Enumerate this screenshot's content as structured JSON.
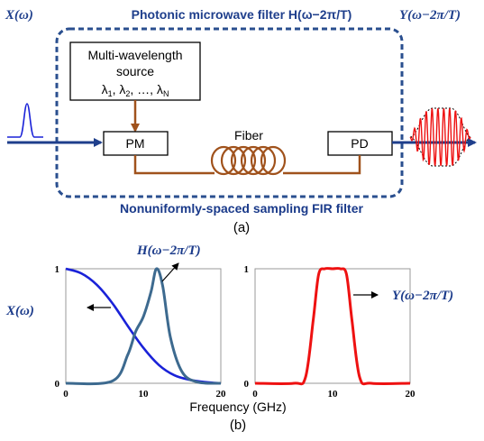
{
  "diagram": {
    "input_label": "X(ω)",
    "output_label": "Y(ω−2π/T)",
    "filter_title": "Photonic microwave filter H(ω−2π/T)",
    "source_box": {
      "line1": "Multi-wavelength",
      "line2": "source",
      "lambdas": [
        "λ",
        "1",
        ", λ",
        "2",
        ", …, λ",
        "N"
      ]
    },
    "pm_label": "PM",
    "pd_label": "PD",
    "fiber_label": "Fiber",
    "caption": "Nonuniformly-spaced sampling FIR filter",
    "panel_label": "(a)"
  },
  "plots": {
    "x_axis_label": "Frequency (GHz)",
    "panel_label": "(b)",
    "left": {
      "xticks": [
        "0",
        "10",
        "20"
      ],
      "yticks": [
        "0",
        "1"
      ],
      "label_X": "X(ω)",
      "label_H": "H(ω−2π/T)"
    },
    "right": {
      "xticks": [
        "0",
        "10",
        "20"
      ],
      "yticks": [
        "0",
        "1"
      ],
      "label_Y": "Y(ω−2π/T)"
    }
  },
  "colors": {
    "navy": "#1f3f8c",
    "dark_blue": "#1a3a8a",
    "teal": "#3d6a8f",
    "blue_curve": "#1a22d8",
    "red_curve": "#ee1111",
    "fiber": "#a0521c",
    "dashed_box": "#2a4f8f"
  },
  "chart_data": [
    {
      "type": "line",
      "title": "",
      "xlabel": "Frequency (GHz)",
      "ylabel": "",
      "xlim": [
        0,
        20
      ],
      "ylim": [
        0,
        1
      ],
      "series": [
        {
          "name": "X(ω)",
          "x": [
            0,
            2,
            4,
            6,
            8,
            10,
            12,
            14,
            16,
            18,
            20
          ],
          "values": [
            1.0,
            0.96,
            0.86,
            0.7,
            0.5,
            0.31,
            0.16,
            0.07,
            0.03,
            0.01,
            0.0
          ]
        },
        {
          "name": "H(ω−2π/T)",
          "x": [
            0,
            6,
            8,
            9,
            10,
            11,
            11.7,
            12.5,
            13.5,
            15,
            17,
            20
          ],
          "values": [
            0.0,
            0.02,
            0.25,
            0.45,
            0.58,
            0.8,
            1.0,
            0.85,
            0.4,
            0.1,
            0.01,
            0.0
          ]
        }
      ]
    },
    {
      "type": "line",
      "title": "",
      "xlabel": "Frequency (GHz)",
      "ylabel": "",
      "xlim": [
        0,
        20
      ],
      "ylim": [
        0,
        1
      ],
      "series": [
        {
          "name": "Y(ω−2π/T)",
          "x": [
            0,
            5,
            6.5,
            7.5,
            8.2,
            9,
            10,
            11,
            11.8,
            12.5,
            13.5,
            15,
            20
          ],
          "values": [
            0.0,
            0.0,
            0.05,
            0.55,
            0.95,
            1.0,
            1.0,
            1.0,
            0.95,
            0.55,
            0.05,
            0.0,
            0.0
          ]
        }
      ]
    }
  ]
}
